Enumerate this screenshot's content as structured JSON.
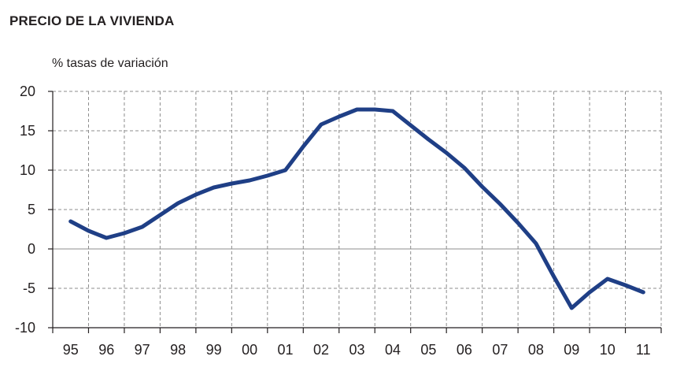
{
  "title": "PRECIO DE LA VIVIENDA",
  "colors": {
    "line": "#1f3f86",
    "grid": "#8c8c8c",
    "zero_line": "#8c8c8c",
    "axis": "#231f20"
  },
  "chart_data": {
    "type": "line",
    "title": "PRECIO DE LA VIVIENDA",
    "ylabel": "% tasas de variación",
    "xlabel": "",
    "categories": [
      "95",
      "96",
      "97",
      "98",
      "99",
      "00",
      "01",
      "02",
      "03",
      "04",
      "05",
      "06",
      "07",
      "08",
      "09",
      "10",
      "11"
    ],
    "x": [
      1995,
      1995.5,
      1996,
      1996.5,
      1997,
      1997.5,
      1998,
      1998.5,
      1999,
      1999.5,
      2000,
      2000.5,
      2001,
      2001.5,
      2002,
      2002.5,
      2003,
      2003.5,
      2004,
      2004.5,
      2005,
      2005.5,
      2006,
      2006.5,
      2007,
      2007.5,
      2008,
      2008.5,
      2009,
      2009.5,
      2010,
      2010.5,
      2011
    ],
    "series": [
      {
        "values": [
          3.5,
          2.3,
          1.4,
          2.0,
          2.8,
          4.3,
          5.8,
          6.9,
          7.8,
          8.3,
          8.7,
          9.3,
          10.0,
          13.0,
          15.8,
          16.8,
          17.7,
          17.7,
          17.5,
          15.7,
          13.9,
          12.2,
          10.3,
          7.9,
          5.7,
          3.3,
          0.7,
          -3.5,
          -7.5,
          -5.5,
          -3.8,
          -4.6,
          -5.5
        ]
      }
    ],
    "yticks": [
      "20",
      "15",
      "10",
      "5",
      "0",
      "-5",
      "-10"
    ],
    "ytick_values": [
      20,
      15,
      10,
      5,
      0,
      -5,
      -10
    ],
    "ylim": [
      -10,
      20
    ],
    "grid": "dashed",
    "legend": "none"
  }
}
